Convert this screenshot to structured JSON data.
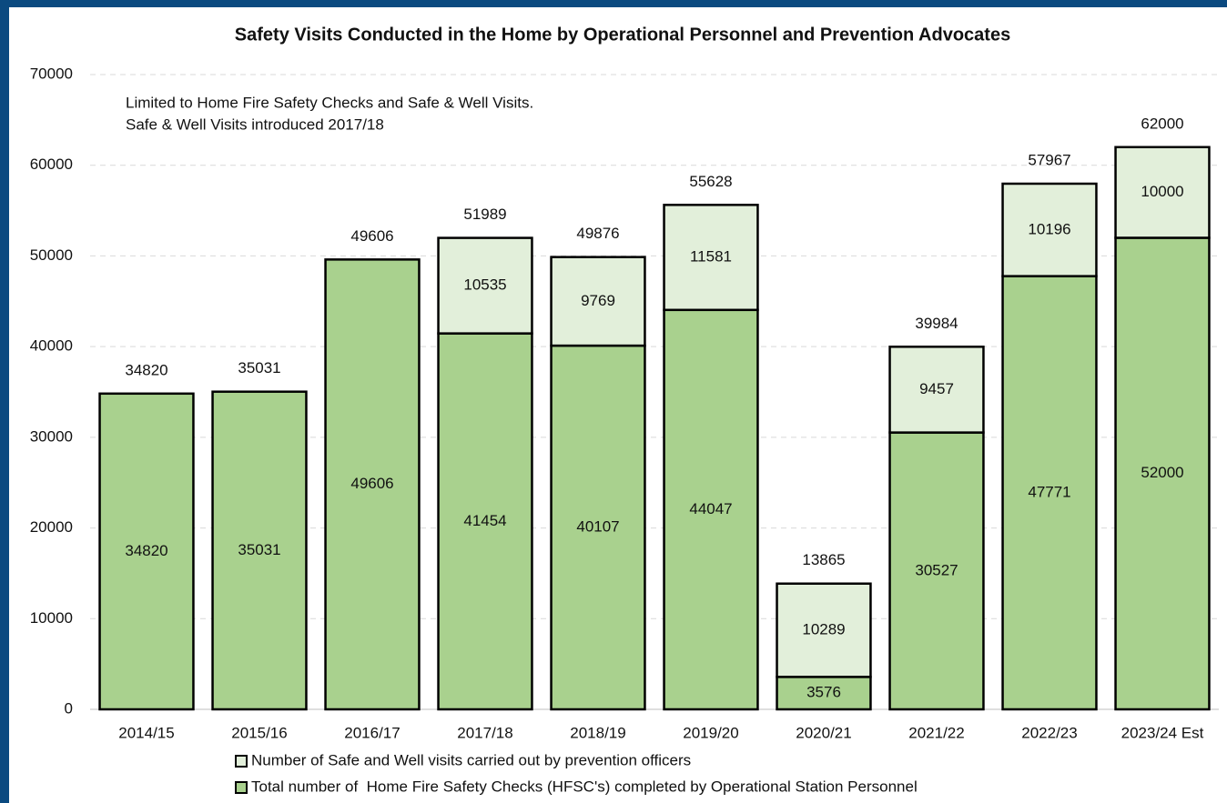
{
  "chart_data": {
    "type": "stacked_bar",
    "title": "Safety Visits Conducted in the Home by Operational Personnel and Prevention Advocates",
    "annotations": [
      "Limited to Home Fire Safety Checks and Safe & Well Visits.",
      "Safe & Well Visits introduced 2017/18"
    ],
    "categories": [
      "2014/15",
      "2015/16",
      "2016/17",
      "2017/18",
      "2018/19",
      "2019/20",
      "2020/21",
      "2021/22",
      "2022/23",
      "2023/24 Est"
    ],
    "series": [
      {
        "name": "Total number of  Home Fire Safety Checks (HFSC's) completed by Operational Station Personnel",
        "color": "#a9d18e",
        "values": [
          34820,
          35031,
          49606,
          41454,
          40107,
          44047,
          3576,
          30527,
          47771,
          52000
        ]
      },
      {
        "name": "Number of Safe and Well visits carried out by prevention officers",
        "color": "#e2efda",
        "values": [
          null,
          null,
          null,
          10535,
          9769,
          11581,
          10289,
          9457,
          10196,
          10000
        ]
      }
    ],
    "totals": [
      34820,
      35031,
      49606,
      51989,
      49876,
      55628,
      13865,
      39984,
      57967,
      62000
    ],
    "ylim": [
      0,
      70000
    ],
    "yticks": [
      0,
      10000,
      20000,
      30000,
      40000,
      50000,
      60000,
      70000
    ],
    "grid": true
  }
}
